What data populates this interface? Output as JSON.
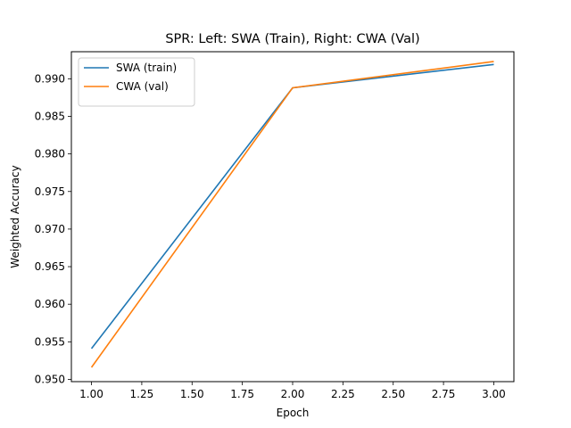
{
  "chart_data": {
    "type": "line",
    "title": "SPR: Left: SWA (Train), Right: CWA (Val)",
    "xlabel": "Epoch",
    "ylabel": "Weighted Accuracy",
    "xlim": [
      0.9,
      3.1
    ],
    "ylim": [
      0.9497,
      0.9936
    ],
    "x_ticks": [
      1.0,
      1.25,
      1.5,
      1.75,
      2.0,
      2.25,
      2.5,
      2.75,
      3.0
    ],
    "x_tick_labels": [
      "1.00",
      "1.25",
      "1.50",
      "1.75",
      "2.00",
      "2.25",
      "2.50",
      "2.75",
      "3.00"
    ],
    "y_ticks": [
      0.95,
      0.955,
      0.96,
      0.965,
      0.97,
      0.975,
      0.98,
      0.985,
      0.99
    ],
    "y_tick_labels": [
      "0.950",
      "0.955",
      "0.960",
      "0.965",
      "0.970",
      "0.975",
      "0.980",
      "0.985",
      "0.990"
    ],
    "grid": false,
    "legend_position": "top-left",
    "x": [
      1,
      2,
      3
    ],
    "series": [
      {
        "name": "SWA (train)",
        "color": "#1f77b4",
        "values": [
          0.9541,
          0.9888,
          0.9919
        ]
      },
      {
        "name": "CWA (val)",
        "color": "#ff7f0e",
        "values": [
          0.9516,
          0.9888,
          0.9923
        ]
      }
    ]
  }
}
